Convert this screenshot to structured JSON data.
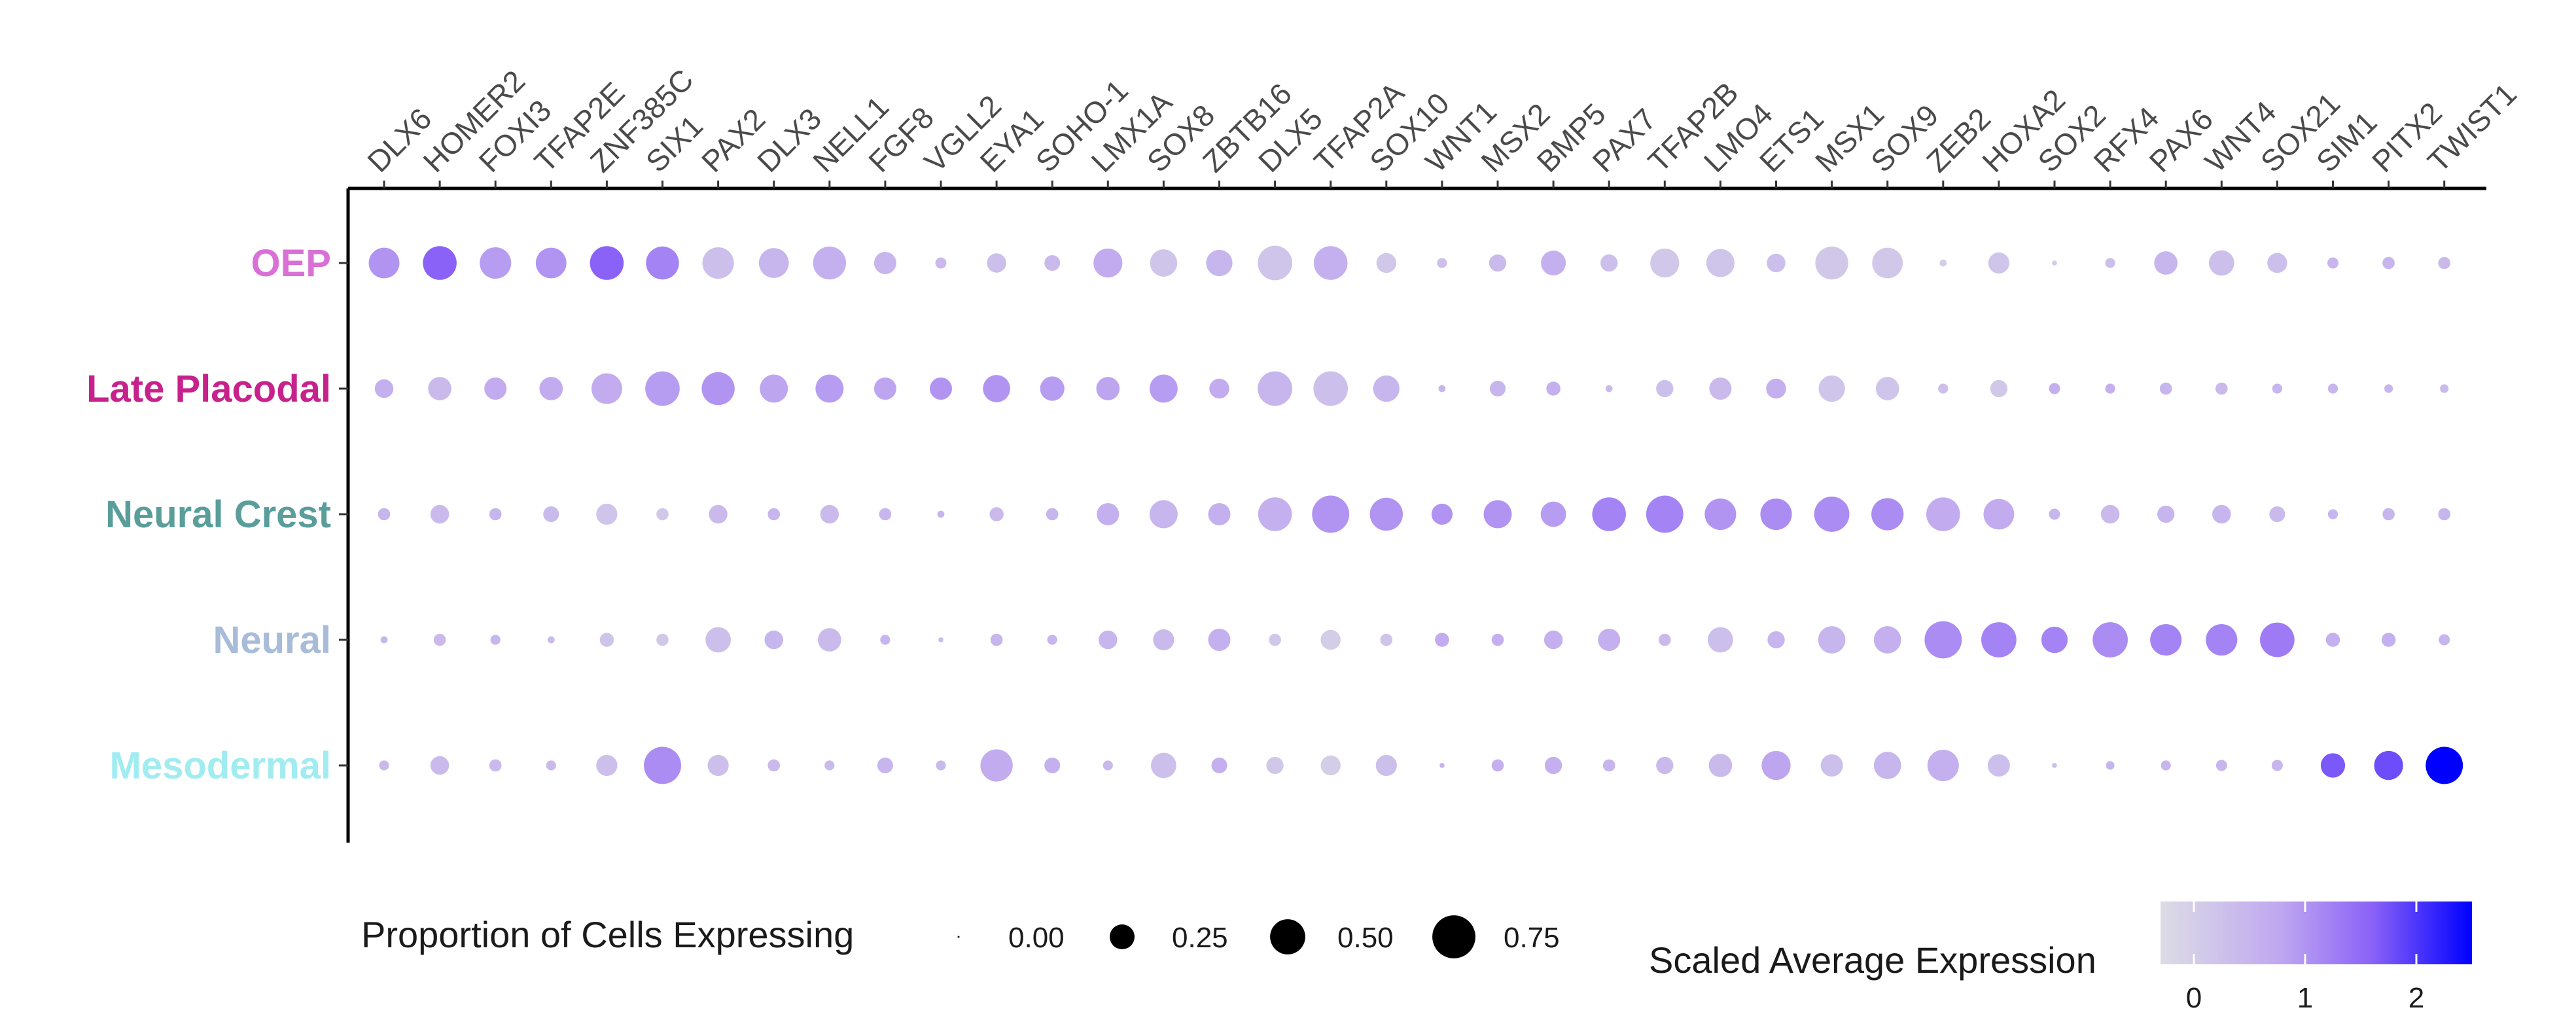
{
  "chart_data": {
    "type": "dotplot",
    "genes": [
      "DLX6",
      "HOMER2",
      "FOXI3",
      "TFAP2E",
      "ZNF385C",
      "SIX1",
      "PAX2",
      "DLX3",
      "NELL1",
      "FGF8",
      "VGLL2",
      "EYA1",
      "SOHO-1",
      "LMX1A",
      "SOX8",
      "ZBTB16",
      "DLX5",
      "TFAP2A",
      "SOX10",
      "WNT1",
      "MSX2",
      "BMP5",
      "PAX7",
      "TFAP2B",
      "LMO4",
      "ETS1",
      "MSX1",
      "SOX9",
      "ZEB2",
      "HOXA2",
      "SOX2",
      "RFX4",
      "PAX6",
      "WNT4",
      "SOX21",
      "SIM1",
      "PITX2",
      "TWIST1"
    ],
    "groups": [
      {
        "name": "OEP",
        "color": "#d970d6",
        "pct": [
          0.38,
          0.46,
          0.4,
          0.38,
          0.46,
          0.44,
          0.4,
          0.36,
          0.44,
          0.2,
          0.05,
          0.15,
          0.1,
          0.34,
          0.3,
          0.28,
          0.48,
          0.46,
          0.16,
          0.04,
          0.12,
          0.25,
          0.12,
          0.34,
          0.32,
          0.14,
          0.44,
          0.38,
          0.02,
          0.18,
          0.01,
          0.04,
          0.22,
          0.26,
          0.16,
          0.05,
          0.06,
          0.06
        ],
        "expr": [
          1.0,
          1.6,
          0.9,
          1.0,
          1.6,
          1.2,
          0.3,
          0.5,
          0.6,
          0.5,
          0.4,
          0.3,
          0.4,
          0.7,
          0.2,
          0.5,
          0.2,
          0.6,
          0.1,
          0.3,
          0.4,
          0.6,
          0.3,
          0.1,
          0.2,
          0.3,
          0.1,
          0.1,
          0.0,
          0.2,
          0.0,
          0.3,
          0.5,
          0.3,
          0.3,
          0.5,
          0.5,
          0.4
        ]
      },
      {
        "name": "Late Placodal",
        "color": "#c7228c",
        "pct": [
          0.14,
          0.22,
          0.2,
          0.22,
          0.38,
          0.48,
          0.44,
          0.32,
          0.32,
          0.2,
          0.2,
          0.3,
          0.24,
          0.22,
          0.32,
          0.16,
          0.48,
          0.48,
          0.28,
          0.02,
          0.1,
          0.08,
          0.02,
          0.12,
          0.2,
          0.16,
          0.28,
          0.22,
          0.04,
          0.12,
          0.05,
          0.04,
          0.06,
          0.06,
          0.04,
          0.04,
          0.03,
          0.03
        ],
        "expr": [
          0.6,
          0.4,
          0.7,
          0.7,
          0.7,
          0.9,
          1.0,
          0.8,
          0.9,
          0.8,
          1.0,
          1.0,
          0.9,
          0.8,
          0.9,
          0.7,
          0.5,
          0.3,
          0.5,
          0.5,
          0.5,
          0.6,
          0.4,
          0.3,
          0.4,
          0.6,
          0.2,
          0.2,
          0.3,
          0.1,
          0.6,
          0.6,
          0.5,
          0.4,
          0.5,
          0.5,
          0.5,
          0.4
        ]
      },
      {
        "name": "Neural Crest",
        "color": "#5a9e9b",
        "pct": [
          0.06,
          0.14,
          0.06,
          0.1,
          0.18,
          0.06,
          0.14,
          0.06,
          0.14,
          0.06,
          0.02,
          0.08,
          0.06,
          0.2,
          0.32,
          0.2,
          0.46,
          0.56,
          0.44,
          0.18,
          0.32,
          0.26,
          0.46,
          0.56,
          0.4,
          0.4,
          0.5,
          0.42,
          0.46,
          0.38,
          0.05,
          0.14,
          0.12,
          0.14,
          0.1,
          0.04,
          0.06,
          0.06
        ],
        "expr": [
          0.5,
          0.4,
          0.5,
          0.4,
          0.2,
          0.1,
          0.4,
          0.5,
          0.4,
          0.5,
          0.5,
          0.4,
          0.5,
          0.6,
          0.5,
          0.6,
          0.6,
          1.0,
          1.0,
          1.0,
          1.0,
          0.9,
          1.2,
          1.2,
          1.0,
          1.1,
          1.1,
          1.1,
          0.7,
          0.7,
          0.5,
          0.4,
          0.5,
          0.5,
          0.4,
          0.5,
          0.5,
          0.5
        ]
      },
      {
        "name": "Neural",
        "color": "#a8bcd9",
        "pct": [
          0.02,
          0.06,
          0.04,
          0.02,
          0.08,
          0.06,
          0.26,
          0.14,
          0.22,
          0.04,
          0.01,
          0.06,
          0.04,
          0.14,
          0.18,
          0.2,
          0.06,
          0.16,
          0.06,
          0.08,
          0.06,
          0.14,
          0.2,
          0.06,
          0.26,
          0.12,
          0.3,
          0.3,
          0.56,
          0.5,
          0.28,
          0.5,
          0.4,
          0.4,
          0.48,
          0.08,
          0.08,
          0.05
        ],
        "expr": [
          0.5,
          0.4,
          0.5,
          0.4,
          0.2,
          0.1,
          0.3,
          0.5,
          0.4,
          0.5,
          0.4,
          0.5,
          0.5,
          0.5,
          0.4,
          0.6,
          0.1,
          0.0,
          0.2,
          0.7,
          0.6,
          0.6,
          0.6,
          0.4,
          0.3,
          0.5,
          0.5,
          0.6,
          1.1,
          1.2,
          1.2,
          1.1,
          1.2,
          1.2,
          1.3,
          0.6,
          0.6,
          0.5
        ]
      },
      {
        "name": "Mesodermal",
        "color": "#a0ecf0",
        "pct": [
          0.04,
          0.14,
          0.06,
          0.04,
          0.18,
          0.56,
          0.18,
          0.06,
          0.04,
          0.1,
          0.04,
          0.42,
          0.1,
          0.04,
          0.26,
          0.1,
          0.12,
          0.16,
          0.18,
          0.01,
          0.06,
          0.12,
          0.06,
          0.12,
          0.22,
          0.34,
          0.2,
          0.3,
          0.4,
          0.2,
          0.01,
          0.03,
          0.04,
          0.05,
          0.05,
          0.24,
          0.34,
          0.56
        ],
        "expr": [
          0.4,
          0.4,
          0.4,
          0.4,
          0.3,
          1.1,
          0.3,
          0.4,
          0.4,
          0.5,
          0.4,
          0.7,
          0.6,
          0.4,
          0.3,
          0.6,
          0.1,
          0.0,
          0.3,
          0.6,
          0.6,
          0.6,
          0.5,
          0.4,
          0.4,
          0.8,
          0.3,
          0.5,
          0.6,
          0.3,
          0.3,
          0.5,
          0.5,
          0.5,
          0.5,
          1.7,
          1.8,
          2.5
        ]
      }
    ],
    "size_legend": {
      "title": "Proportion of Cells Expressing",
      "values": [
        0.0,
        0.25,
        0.5,
        0.75
      ],
      "labels": [
        "0.00",
        "0.25",
        "0.50",
        "0.75"
      ]
    },
    "color_legend": {
      "title": "Scaled Average Expression",
      "ticks": [
        0,
        1,
        2
      ],
      "tick_labels": [
        "0",
        "1",
        "2"
      ],
      "range": [
        -0.3,
        2.5
      ],
      "low_color": "#dcdce5",
      "high_color": "#0000ff"
    }
  }
}
